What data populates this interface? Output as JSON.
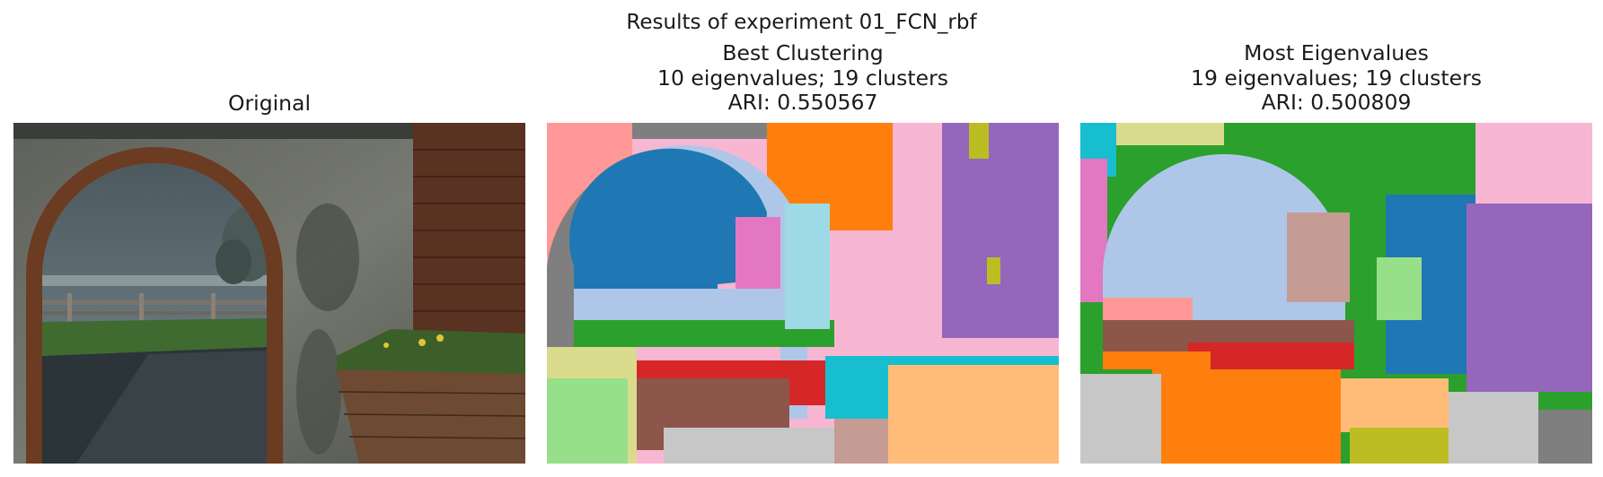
{
  "figure": {
    "suptitle": "Results of experiment 01_FCN_rbf"
  },
  "panels": [
    {
      "title_lines": [
        "Original"
      ]
    },
    {
      "title_lines": [
        "Best Clustering",
        "10 eigenvalues; 19 clusters",
        "ARI: 0.550567"
      ]
    },
    {
      "title_lines": [
        "Most Eigenvalues",
        "19 eigenvalues; 19 clusters",
        "ARI: 0.500809"
      ]
    }
  ],
  "colors": {
    "blue": "#1f77b4",
    "lightblue": "#aec7e8",
    "orange": "#ff7f0e",
    "lightorange": "#ffbb78",
    "green": "#2ca02c",
    "lightgreen": "#98df8a",
    "red": "#d62728",
    "pink": "#ff9896",
    "purple": "#9467bd",
    "brown": "#8c564b",
    "tan": "#c49c94",
    "magenta": "#e377c2",
    "lightpink": "#f7b6d2",
    "gray": "#7f7f7f",
    "lightgray": "#c7c7c7",
    "olive": "#bcbd22",
    "khaki": "#dbdb8d",
    "cyan": "#17becf",
    "lightcyan": "#9edae5"
  }
}
